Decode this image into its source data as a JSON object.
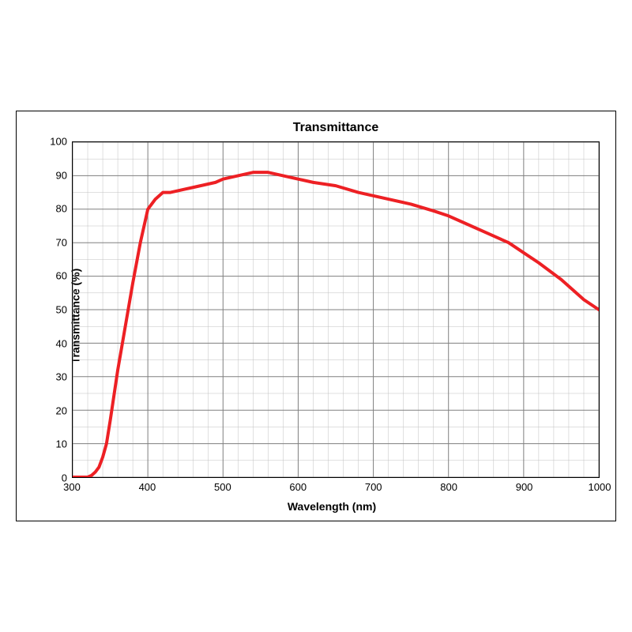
{
  "chart": {
    "type": "line",
    "title": "Transmittance",
    "title_fontsize": 16,
    "title_fontweight": "bold",
    "xlabel": "Wavelength (nm)",
    "ylabel": "Transmittance (%)",
    "label_fontsize": 14,
    "label_fontweight": "bold",
    "tick_fontsize": 13,
    "xlim": [
      300,
      1000
    ],
    "ylim": [
      0,
      100
    ],
    "xtick_step": 100,
    "ytick_step": 10,
    "x_minor_step": 20,
    "y_minor_step": 5,
    "xticks": [
      300,
      400,
      500,
      600,
      700,
      800,
      900,
      1000
    ],
    "yticks": [
      0,
      10,
      20,
      30,
      40,
      50,
      60,
      70,
      80,
      90,
      100
    ],
    "background_color": "#ffffff",
    "grid_major_color": "#808080",
    "grid_minor_color": "#c0c0c0",
    "grid_major_width": 1,
    "grid_minor_width": 0.5,
    "border_color": "#000000",
    "line_color": "#ed2024",
    "line_width": 4,
    "series": {
      "x": [
        300,
        310,
        320,
        325,
        330,
        335,
        340,
        345,
        350,
        360,
        370,
        380,
        390,
        400,
        410,
        420,
        430,
        440,
        450,
        460,
        470,
        480,
        490,
        500,
        520,
        540,
        560,
        580,
        600,
        620,
        650,
        680,
        700,
        720,
        750,
        780,
        800,
        820,
        850,
        880,
        900,
        920,
        950,
        980,
        1000
      ],
      "y": [
        0,
        0,
        0,
        0.5,
        1.5,
        3,
        6,
        10,
        17,
        32,
        45,
        58,
        70,
        80,
        83,
        85,
        85,
        85.5,
        86,
        86.5,
        87,
        87.5,
        88,
        89,
        90,
        91,
        91,
        90,
        89,
        88,
        87,
        85,
        84,
        83,
        81.5,
        79.5,
        78,
        76,
        73,
        70,
        67,
        64,
        59,
        53,
        50
      ]
    }
  }
}
